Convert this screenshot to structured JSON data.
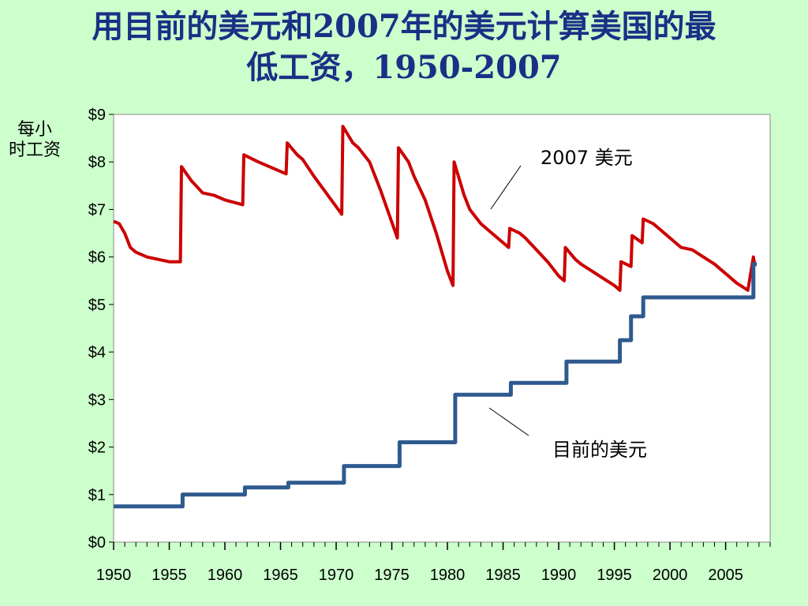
{
  "title": {
    "line1": "用目前的美元和2007年的美元计算美国的最",
    "line2": "低工资，1950-2007"
  },
  "chart_data": {
    "type": "line",
    "ylabel_line1": "每小",
    "ylabel_line2": "时工资",
    "ylim": [
      0,
      9
    ],
    "xlim": [
      1950,
      2009
    ],
    "y_ticks": [
      "$0",
      "$1",
      "$2",
      "$3",
      "$4",
      "$5",
      "$6",
      "$7",
      "$8",
      "$9"
    ],
    "x_ticks": [
      "1950",
      "1955",
      "1960",
      "1965",
      "1970",
      "1975",
      "1980",
      "1985",
      "1990",
      "1995",
      "2000",
      "2005"
    ],
    "grid": false,
    "colors": {
      "real": "#cc0000",
      "nominal": "#2e5a8e"
    },
    "series": [
      {
        "name": "2007 美元",
        "x": [
          1950.0,
          1950.5,
          1951.0,
          1951.5,
          1952.0,
          1953.0,
          1954.0,
          1955.0,
          1956.0,
          1956.1,
          1957.0,
          1958.0,
          1959.0,
          1960.0,
          1961.6,
          1961.7,
          1963.0,
          1965.5,
          1965.6,
          1966.5,
          1967.0,
          1968.0,
          1970.5,
          1970.6,
          1971.5,
          1972.0,
          1973.0,
          1974.0,
          1975.5,
          1975.6,
          1976.5,
          1977.0,
          1978.0,
          1979.0,
          1980.0,
          1980.5,
          1980.6,
          1981.5,
          1982.0,
          1983.0,
          1984.0,
          1985.5,
          1985.6,
          1986.5,
          1987.0,
          1988.0,
          1989.0,
          1990.0,
          1990.5,
          1990.6,
          1991.5,
          1992.0,
          1993.0,
          1994.0,
          1995.0,
          1995.5,
          1995.6,
          1996.5,
          1996.6,
          1997.5,
          1997.6,
          1998.5,
          1999.0,
          2000.0,
          2001.0,
          2002.0,
          2003.0,
          2004.0,
          2005.0,
          2006.0,
          2007.0,
          2007.5,
          2007.6
        ],
        "values": [
          6.75,
          6.7,
          6.5,
          6.2,
          6.1,
          6.0,
          5.95,
          5.9,
          5.9,
          7.9,
          7.6,
          7.35,
          7.3,
          7.2,
          7.1,
          8.15,
          8.0,
          7.75,
          8.4,
          8.15,
          8.05,
          7.7,
          6.9,
          8.75,
          8.4,
          8.3,
          8.0,
          7.4,
          6.4,
          8.3,
          8.0,
          7.7,
          7.2,
          6.5,
          5.7,
          5.4,
          8.0,
          7.3,
          7.0,
          6.7,
          6.5,
          6.2,
          6.6,
          6.5,
          6.4,
          6.15,
          5.9,
          5.6,
          5.5,
          6.2,
          5.95,
          5.85,
          5.7,
          5.55,
          5.4,
          5.3,
          5.9,
          5.8,
          6.45,
          6.3,
          6.8,
          6.7,
          6.6,
          6.4,
          6.2,
          6.15,
          6.0,
          5.85,
          5.65,
          5.45,
          5.3,
          6.0,
          5.85
        ]
      },
      {
        "name": "目前的美元",
        "x": [
          1950.0,
          1956.2,
          1956.2,
          1961.8,
          1961.8,
          1965.7,
          1965.7,
          1970.7,
          1970.7,
          1975.7,
          1975.7,
          1980.7,
          1980.7,
          1985.7,
          1985.7,
          1990.7,
          1990.7,
          1995.5,
          1995.5,
          1996.5,
          1996.5,
          1997.6,
          1997.6,
          2007.5,
          2007.5,
          2007.8
        ],
        "values": [
          0.75,
          0.75,
          1.0,
          1.0,
          1.15,
          1.15,
          1.25,
          1.25,
          1.6,
          1.6,
          2.1,
          2.1,
          3.1,
          3.1,
          3.35,
          3.35,
          3.8,
          3.8,
          4.25,
          4.25,
          4.75,
          4.75,
          5.15,
          5.15,
          5.85,
          5.85
        ]
      }
    ]
  }
}
